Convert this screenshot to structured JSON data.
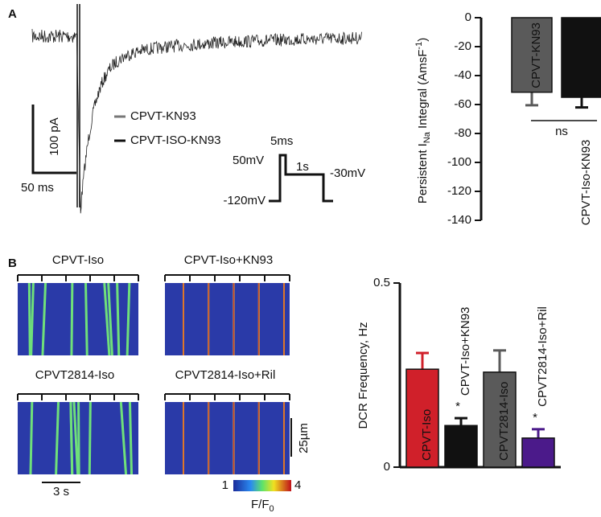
{
  "figure": {
    "panel_a": "A",
    "panel_b": "B",
    "legend": [
      "CPVT-KN93",
      "CPVT-ISO-KN93"
    ],
    "scale_current": "100 pA",
    "scale_time": "50 ms",
    "protocol": {
      "pulse": "5ms",
      "hold_high": "50mV",
      "duration": "1s",
      "step": "-30mV",
      "rest": "-120mV"
    },
    "scan_titles": [
      "CPVT-Iso",
      "CPVT-Iso+KN93",
      "CPVT2814-Iso",
      "CPVT2814-Iso+Ril"
    ],
    "scale_space": "25µm",
    "scale_scan_time": "3 s",
    "colorbar_min": "1",
    "colorbar_max": "4",
    "colorbar_label": [
      "F/F",
      "0"
    ]
  },
  "chart_data": [
    {
      "type": "bar",
      "ylabel_parts": [
        "Persistent I",
        "Na",
        " Integral (AmsF",
        "-1",
        ")"
      ],
      "categories": [
        "CPVT-KN93",
        "CPVT-Iso-KN93"
      ],
      "values": [
        -51.5,
        -55
      ],
      "errors": [
        9,
        7
      ],
      "colors": [
        "#5a5a5a",
        "#111111"
      ],
      "label_positions": [
        "inside",
        "below"
      ],
      "ylim": [
        -140,
        0
      ],
      "yticks": [
        0,
        -20,
        -40,
        -60,
        -80,
        -100,
        -120,
        -140
      ],
      "annotation": "ns"
    },
    {
      "type": "bar",
      "ylabel": "DCR Frequency, Hz",
      "categories": [
        "CPVT-Iso",
        "CPVT-Iso+KN93",
        "CPVT2814-Iso",
        "CPVT2814-Iso+Ril"
      ],
      "values": [
        0.266,
        0.113,
        0.258,
        0.079
      ],
      "errors": [
        0.044,
        0.02,
        0.059,
        0.024
      ],
      "colors": [
        "#d0202a",
        "#111111",
        "#5a5a5a",
        "#4b1a8a"
      ],
      "label_positions": [
        "inside",
        "above",
        "inside",
        "above"
      ],
      "markers": [
        null,
        "*",
        null,
        "*"
      ],
      "ylim": [
        0,
        0.5
      ],
      "yticks": [
        0,
        0.5
      ]
    }
  ]
}
